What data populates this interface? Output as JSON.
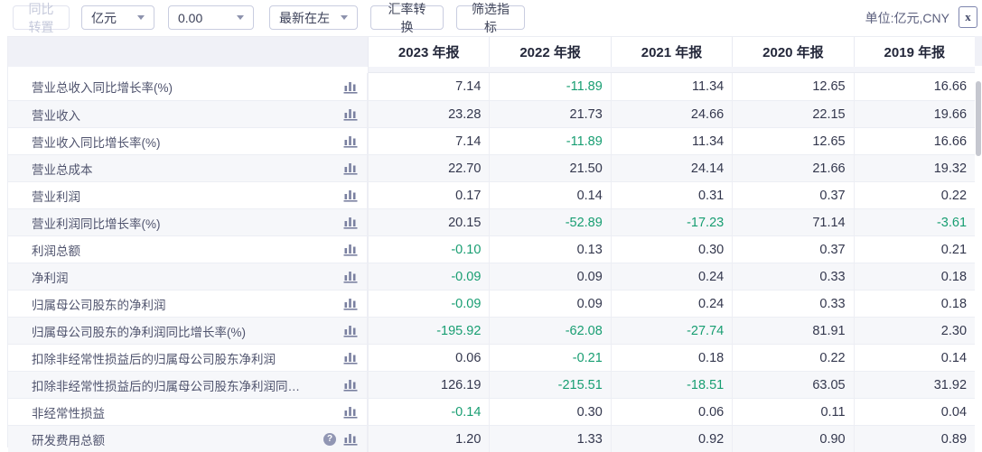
{
  "toolbar": {
    "transpose_label": "同比转置",
    "unit_select_value": "亿元",
    "decimal_select_value": "0.00",
    "order_select_value": "最新在左",
    "fx_button_label": "汇率转换",
    "filter_button_label": "筛选指标",
    "unit_label": "单位:亿元,CNY",
    "export_icon_glyph": "x"
  },
  "help_glyph": "?",
  "colors": {
    "negative_value": "#189e72",
    "positive_value": "#33374d",
    "header_label_cell_bg": "#f0f1f7",
    "alt_row_bg": "#f6f7fa",
    "icon_gray": "#7a80a0"
  },
  "table": {
    "columns": [
      "2023 年报",
      "2022 年报",
      "2021 年报",
      "2020 年报",
      "2019 年报"
    ],
    "rows": [
      {
        "label": "营业总收入同比增长率(%)",
        "help": false,
        "values": [
          "7.14",
          "-11.89",
          "11.34",
          "12.65",
          "16.66"
        ]
      },
      {
        "label": "营业收入",
        "help": false,
        "values": [
          "23.28",
          "21.73",
          "24.66",
          "22.15",
          "19.66"
        ]
      },
      {
        "label": "营业收入同比增长率(%)",
        "help": false,
        "values": [
          "7.14",
          "-11.89",
          "11.34",
          "12.65",
          "16.66"
        ]
      },
      {
        "label": "营业总成本",
        "help": false,
        "values": [
          "22.70",
          "21.50",
          "24.14",
          "21.66",
          "19.32"
        ]
      },
      {
        "label": "营业利润",
        "help": false,
        "values": [
          "0.17",
          "0.14",
          "0.31",
          "0.37",
          "0.22"
        ]
      },
      {
        "label": "营业利润同比增长率(%)",
        "help": false,
        "values": [
          "20.15",
          "-52.89",
          "-17.23",
          "71.14",
          "-3.61"
        ]
      },
      {
        "label": "利润总额",
        "help": false,
        "values": [
          "-0.10",
          "0.13",
          "0.30",
          "0.37",
          "0.21"
        ]
      },
      {
        "label": "净利润",
        "help": false,
        "values": [
          "-0.09",
          "0.09",
          "0.24",
          "0.33",
          "0.18"
        ]
      },
      {
        "label": "归属母公司股东的净利润",
        "help": false,
        "values": [
          "-0.09",
          "0.09",
          "0.24",
          "0.33",
          "0.18"
        ]
      },
      {
        "label": "归属母公司股东的净利润同比增长率(%)",
        "help": false,
        "values": [
          "-195.92",
          "-62.08",
          "-27.74",
          "81.91",
          "2.30"
        ]
      },
      {
        "label": "扣除非经常性损益后的归属母公司股东净利润",
        "help": false,
        "values": [
          "0.06",
          "-0.21",
          "0.18",
          "0.22",
          "0.14"
        ]
      },
      {
        "label": "扣除非经常性损益后的归属母公司股东净利润同比增...",
        "help": false,
        "values": [
          "126.19",
          "-215.51",
          "-18.51",
          "63.05",
          "31.92"
        ]
      },
      {
        "label": "非经常性损益",
        "help": false,
        "values": [
          "-0.14",
          "0.30",
          "0.06",
          "0.11",
          "0.04"
        ]
      },
      {
        "label": "研发费用总额",
        "help": true,
        "values": [
          "1.20",
          "1.33",
          "0.92",
          "0.90",
          "0.89"
        ]
      }
    ]
  }
}
